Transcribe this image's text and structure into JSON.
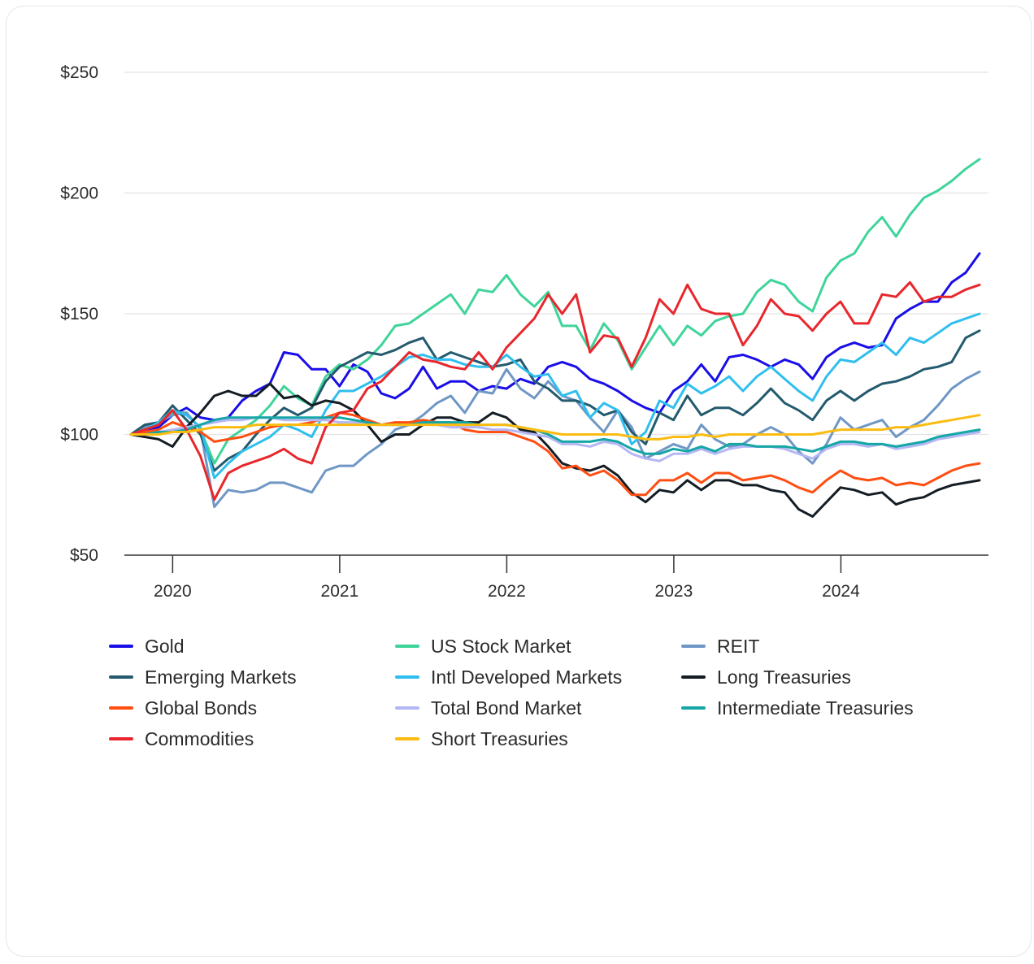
{
  "chart_data": {
    "type": "line",
    "title": "",
    "xlabel": "",
    "ylabel": "",
    "ylim": [
      50,
      250
    ],
    "y_ticks": [
      {
        "value": 250,
        "label": "$250"
      },
      {
        "value": 200,
        "label": "$200"
      },
      {
        "value": 150,
        "label": "$150"
      },
      {
        "value": 100,
        "label": "$100"
      },
      {
        "value": 50,
        "label": "$50"
      }
    ],
    "x_start": 2019.75,
    "x_end": 2024.83,
    "x_ticks": [
      {
        "value": 2020,
        "label": "2020"
      },
      {
        "value": 2021,
        "label": "2021"
      },
      {
        "value": 2022,
        "label": "2022"
      },
      {
        "value": 2023,
        "label": "2023"
      },
      {
        "value": 2024,
        "label": "2024"
      }
    ],
    "grid": true,
    "legend_position": "bottom",
    "series": [
      {
        "name": "Gold",
        "color": "#1a0ee8",
        "values": [
          100,
          101,
          103,
          108,
          111,
          107,
          106,
          107,
          114,
          118,
          121,
          134,
          133,
          127,
          127,
          120,
          129,
          126,
          117,
          115,
          119,
          128,
          119,
          122,
          122,
          118,
          120,
          119,
          123,
          121,
          128,
          130,
          128,
          123,
          121,
          118,
          114,
          111,
          109,
          118,
          122,
          129,
          122,
          132,
          133,
          131,
          128,
          131,
          129,
          123,
          132,
          136,
          138,
          136,
          137,
          148,
          152,
          155,
          155,
          163,
          167,
          175
        ]
      },
      {
        "name": "US Stock Market",
        "color": "#3fd49a",
        "values": [
          100,
          102,
          105,
          109,
          109,
          102,
          88,
          98,
          102,
          106,
          112,
          120,
          115,
          112,
          124,
          129,
          127,
          131,
          137,
          145,
          146,
          150,
          154,
          158,
          150,
          160,
          159,
          166,
          158,
          153,
          159,
          145,
          145,
          135,
          146,
          139,
          127,
          136,
          145,
          137,
          145,
          141,
          147,
          149,
          150,
          159,
          164,
          162,
          155,
          151,
          165,
          172,
          175,
          184,
          190,
          182,
          191,
          198,
          201,
          205,
          210,
          214
        ]
      },
      {
        "name": "REIT",
        "color": "#6f97c5",
        "values": [
          100,
          103,
          105,
          108,
          109,
          102,
          70,
          77,
          76,
          77,
          80,
          80,
          78,
          76,
          85,
          87,
          87,
          92,
          96,
          102,
          104,
          108,
          113,
          116,
          109,
          118,
          117,
          127,
          119,
          115,
          122,
          116,
          114,
          107,
          101,
          110,
          103,
          90,
          93,
          96,
          94,
          104,
          98,
          95,
          96,
          100,
          103,
          100,
          93,
          88,
          96,
          107,
          102,
          104,
          106,
          99,
          103,
          106,
          112,
          119,
          123,
          126
        ]
      },
      {
        "name": "Emerging Markets",
        "color": "#235a6e",
        "values": [
          100,
          104,
          105,
          112,
          106,
          100,
          85,
          90,
          93,
          100,
          106,
          111,
          108,
          111,
          122,
          128,
          131,
          134,
          133,
          135,
          138,
          140,
          131,
          134,
          132,
          130,
          128,
          129,
          131,
          122,
          119,
          114,
          114,
          112,
          108,
          110,
          101,
          96,
          109,
          106,
          116,
          108,
          111,
          111,
          108,
          113,
          119,
          113,
          110,
          106,
          114,
          118,
          114,
          118,
          121,
          122,
          124,
          127,
          128,
          130,
          140,
          143
        ]
      },
      {
        "name": "Intl Developed Markets",
        "color": "#2fbfee",
        "values": [
          100,
          102,
          105,
          110,
          108,
          103,
          82,
          88,
          93,
          96,
          99,
          104,
          102,
          99,
          110,
          118,
          118,
          121,
          124,
          128,
          132,
          133,
          131,
          131,
          129,
          128,
          128,
          133,
          128,
          124,
          125,
          116,
          118,
          107,
          113,
          110,
          96,
          101,
          114,
          111,
          121,
          117,
          120,
          124,
          118,
          124,
          128,
          123,
          118,
          114,
          124,
          131,
          130,
          134,
          138,
          133,
          140,
          138,
          142,
          146,
          148,
          150
        ]
      },
      {
        "name": "Long Treasuries",
        "color": "#141c24",
        "values": [
          100,
          99,
          98,
          95,
          103,
          109,
          116,
          118,
          116,
          116,
          121,
          115,
          116,
          112,
          114,
          113,
          110,
          104,
          97,
          100,
          100,
          104,
          107,
          107,
          105,
          105,
          109,
          107,
          102,
          101,
          95,
          88,
          86,
          85,
          87,
          83,
          76,
          72,
          77,
          76,
          81,
          77,
          81,
          81,
          79,
          79,
          77,
          76,
          69,
          66,
          72,
          78,
          77,
          75,
          76,
          71,
          73,
          74,
          77,
          79,
          80,
          81
        ]
      },
      {
        "name": "Global Bonds",
        "color": "#ff4e12",
        "values": [
          100,
          101,
          102,
          105,
          103,
          101,
          97,
          98,
          99,
          101,
          103,
          104,
          104,
          105,
          107,
          109,
          108,
          106,
          104,
          105,
          105,
          106,
          105,
          105,
          102,
          101,
          101,
          101,
          99,
          97,
          93,
          86,
          87,
          83,
          85,
          81,
          75,
          75,
          81,
          81,
          84,
          80,
          84,
          84,
          81,
          82,
          83,
          81,
          78,
          76,
          81,
          85,
          82,
          81,
          82,
          79,
          80,
          79,
          82,
          85,
          87,
          88
        ]
      },
      {
        "name": "Total Bond Market",
        "color": "#b5b7f5",
        "values": [
          100,
          100,
          101,
          102,
          103,
          104,
          105,
          106,
          106,
          107,
          107,
          106,
          106,
          106,
          106,
          105,
          105,
          104,
          104,
          104,
          104,
          104,
          104,
          103,
          103,
          103,
          102,
          102,
          101,
          100,
          99,
          96,
          96,
          95,
          97,
          96,
          92,
          90,
          89,
          92,
          92,
          94,
          92,
          94,
          95,
          95,
          95,
          94,
          92,
          90,
          94,
          96,
          96,
          95,
          96,
          94,
          95,
          96,
          98,
          99,
          100,
          101
        ]
      },
      {
        "name": "Intermediate Treasuries",
        "color": "#15a6a6",
        "values": [
          100,
          100,
          101,
          101,
          102,
          104,
          106,
          107,
          107,
          107,
          107,
          107,
          107,
          107,
          107,
          107,
          106,
          105,
          104,
          104,
          104,
          105,
          105,
          105,
          105,
          104,
          104,
          104,
          103,
          102,
          100,
          97,
          97,
          97,
          98,
          97,
          94,
          92,
          92,
          94,
          93,
          95,
          93,
          96,
          96,
          95,
          95,
          95,
          94,
          93,
          95,
          97,
          97,
          96,
          96,
          95,
          96,
          97,
          99,
          100,
          101,
          102
        ]
      },
      {
        "name": "Commodities",
        "color": "#e8272d",
        "values": [
          100,
          102,
          104,
          110,
          102,
          91,
          73,
          84,
          87,
          89,
          91,
          94,
          90,
          88,
          103,
          109,
          110,
          119,
          122,
          128,
          134,
          131,
          130,
          128,
          127,
          134,
          127,
          136,
          142,
          148,
          158,
          150,
          158,
          134,
          141,
          140,
          128,
          140,
          156,
          150,
          162,
          152,
          150,
          150,
          137,
          145,
          156,
          150,
          149,
          143,
          150,
          155,
          146,
          146,
          158,
          157,
          163,
          155,
          157,
          157,
          160,
          162
        ]
      },
      {
        "name": "Short Treasuries",
        "color": "#fbbc12",
        "values": [
          100,
          100,
          100,
          101,
          101,
          102,
          103,
          103,
          103,
          104,
          104,
          104,
          104,
          104,
          104,
          104,
          104,
          104,
          104,
          104,
          104,
          104,
          104,
          104,
          104,
          104,
          104,
          104,
          103,
          102,
          101,
          100,
          100,
          100,
          100,
          100,
          99,
          98,
          98,
          99,
          99,
          100,
          99,
          100,
          100,
          100,
          100,
          100,
          100,
          100,
          101,
          102,
          102,
          102,
          102,
          103,
          103,
          104,
          105,
          106,
          107,
          108
        ]
      }
    ]
  }
}
